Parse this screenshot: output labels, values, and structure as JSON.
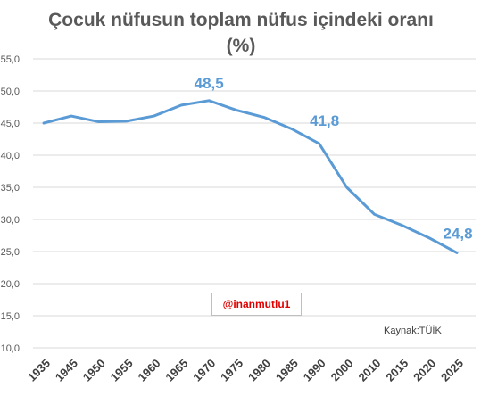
{
  "chart_data": {
    "type": "line",
    "title": "Çocuk nüfusun toplam nüfus içindeki oranı",
    "subtitle": "(%)",
    "categories": [
      "1935",
      "1945",
      "1950",
      "1955",
      "1960",
      "1965",
      "1970",
      "1975",
      "1980",
      "1985",
      "1990",
      "2000",
      "2010",
      "2015",
      "2020",
      "2025"
    ],
    "series": [
      {
        "values": [
          45.0,
          46.1,
          45.2,
          45.3,
          46.1,
          47.8,
          48.5,
          47.0,
          45.9,
          44.1,
          41.8,
          35.0,
          30.8,
          29.1,
          27.1,
          24.8
        ]
      }
    ],
    "data_labels": [
      {
        "category": "1970",
        "text": "48,5"
      },
      {
        "category": "1990",
        "text": "41,8"
      },
      {
        "category": "2025",
        "text": "24,8"
      }
    ],
    "y_ticks": [
      "10,0",
      "15,0",
      "20,0",
      "25,0",
      "30,0",
      "35,0",
      "40,0",
      "45,0",
      "50,0",
      "55,0"
    ],
    "ylim": [
      10,
      55
    ],
    "grid": true,
    "line_color": "#5b9bd5",
    "label_color": "#5b9bd5"
  },
  "watermark": "@inanmutlu1",
  "source_note": "Kaynak:TÜİK"
}
